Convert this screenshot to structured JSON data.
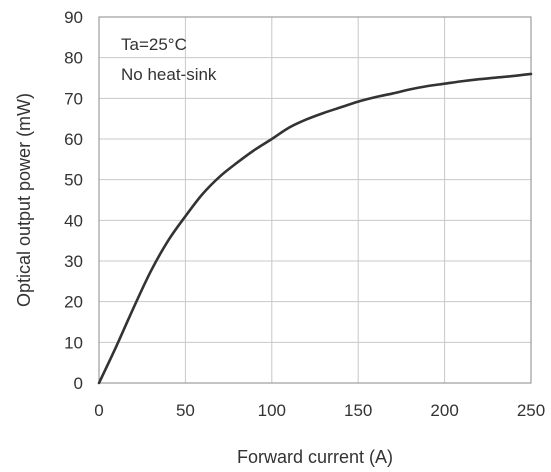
{
  "chart_data": {
    "type": "line",
    "title": "",
    "xlabel": "Forward current  (A)",
    "ylabel": "Optical output power  (mW)",
    "xlim": [
      0,
      250
    ],
    "ylim": [
      0,
      90
    ],
    "x_ticks": [
      0,
      50,
      100,
      150,
      200,
      250
    ],
    "y_ticks": [
      0,
      10,
      20,
      30,
      40,
      50,
      60,
      70,
      80,
      90
    ],
    "grid": true,
    "legend": "none",
    "annotations": [
      "Ta=25°C",
      "No heat-sink"
    ],
    "series": [
      {
        "color": "#333333",
        "x": [
          0,
          10,
          20,
          30,
          40,
          50,
          60,
          70,
          80,
          90,
          100,
          110,
          120,
          130,
          140,
          150,
          160,
          170,
          180,
          190,
          200,
          210,
          220,
          230,
          240,
          250
        ],
        "y": [
          0,
          9,
          18.5,
          27.5,
          35,
          41,
          46.5,
          50.8,
          54.2,
          57.3,
          60,
          62.8,
          64.8,
          66.4,
          67.8,
          69.2,
          70.3,
          71.2,
          72.2,
          73,
          73.6,
          74.2,
          74.7,
          75.1,
          75.5,
          76
        ]
      }
    ]
  }
}
